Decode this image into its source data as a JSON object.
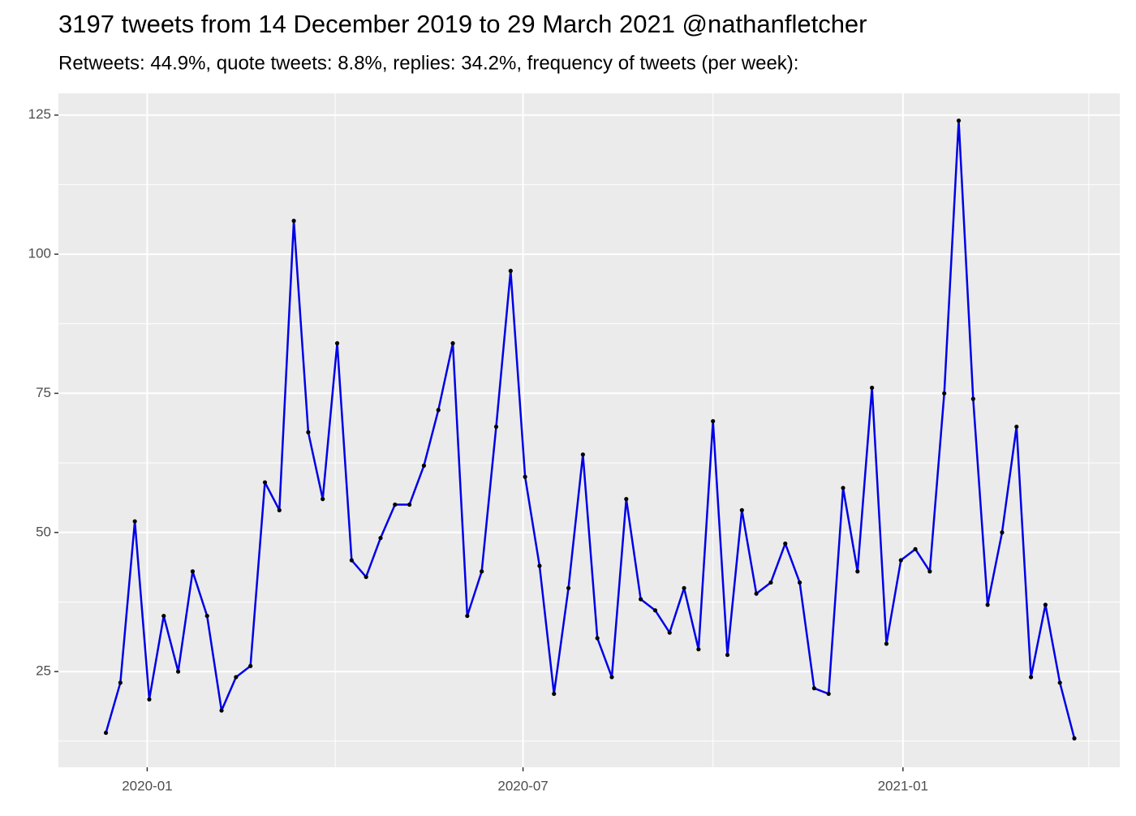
{
  "chart_data": {
    "type": "line",
    "title": "3197 tweets from 14 December 2019 to 29 March 2021 @nathanfletcher",
    "subtitle": "Retweets: 44.9%, quote tweets: 8.8%, replies: 34.2%, frequency of tweets (per week):",
    "x": [
      -20,
      -13,
      -6,
      1,
      8,
      15,
      22,
      29,
      36,
      43,
      50,
      57,
      64,
      71,
      78,
      85,
      92,
      99,
      106,
      113,
      120,
      127,
      134,
      141,
      148,
      155,
      162,
      169,
      176,
      183,
      190,
      197,
      204,
      211,
      218,
      225,
      232,
      239,
      246,
      253,
      260,
      267,
      274,
      281,
      288,
      295,
      302,
      309,
      316,
      323,
      330,
      337,
      344,
      351,
      358,
      365,
      372,
      379,
      386,
      393,
      400,
      407,
      414,
      421,
      428,
      435,
      442,
      449
    ],
    "series": [
      {
        "name": "tweets",
        "color": "#0000e6",
        "marker_color": "#000000",
        "values": [
          14,
          23,
          52,
          20,
          35,
          25,
          43,
          35,
          18,
          24,
          26,
          59,
          54,
          106,
          68,
          56,
          84,
          45,
          42,
          49,
          55,
          55,
          62,
          72,
          84,
          35,
          43,
          69,
          97,
          60,
          44,
          21,
          40,
          64,
          31,
          24,
          56,
          38,
          36,
          32,
          40,
          29,
          70,
          28,
          54,
          39,
          41,
          48,
          41,
          22,
          21,
          58,
          43,
          76,
          30,
          45,
          47,
          43,
          75,
          124,
          74,
          37,
          50,
          69,
          24,
          37,
          23,
          13
        ]
      }
    ],
    "xlim": [
      -43,
      471
    ],
    "xticks": [
      {
        "value": 0,
        "label": "2020-01"
      },
      {
        "value": 182,
        "label": "2020-07"
      },
      {
        "value": 366,
        "label": "2021-01"
      }
    ],
    "minor_xticks": [
      91,
      274,
      456
    ],
    "ylim": [
      7.8,
      128.9
    ],
    "yticks": [
      25,
      50,
      75,
      100,
      125
    ],
    "minor_yticks": [
      12.5,
      37.5,
      62.5,
      87.5,
      112.5
    ],
    "grid": true
  }
}
